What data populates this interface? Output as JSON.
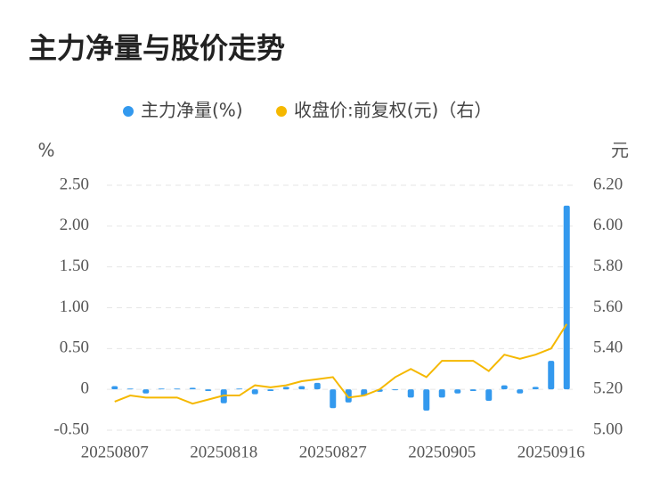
{
  "chart_data": {
    "type": "bar-line",
    "title": "主力净量与股价走势",
    "y_label": "%",
    "y2_label": "元",
    "categories": [
      "20250807",
      null,
      null,
      null,
      null,
      null,
      null,
      "20250818",
      null,
      null,
      null,
      null,
      null,
      null,
      "20250827",
      null,
      null,
      null,
      null,
      null,
      null,
      "20250905",
      null,
      null,
      null,
      null,
      null,
      null,
      "20250916",
      null
    ],
    "series": [
      {
        "name": "主力净量(%)",
        "type": "bar",
        "color": "#3399ee",
        "axis": "y",
        "values": [
          0.04,
          0.01,
          -0.05,
          0.01,
          0.01,
          0.02,
          -0.02,
          -0.17,
          0.01,
          -0.06,
          -0.02,
          0.03,
          0.04,
          0.08,
          -0.23,
          -0.16,
          -0.08,
          -0.03,
          -0.01,
          -0.1,
          -0.26,
          -0.1,
          -0.05,
          -0.02,
          -0.14,
          0.05,
          -0.05,
          0.03,
          0.35,
          2.25
        ]
      },
      {
        "name": "收盘价:前复权(元)（右）",
        "type": "line",
        "color": "#f5b800",
        "axis": "y2",
        "values": [
          5.14,
          5.17,
          5.16,
          5.16,
          5.16,
          5.13,
          5.15,
          5.17,
          5.17,
          5.22,
          5.21,
          5.22,
          5.24,
          5.25,
          5.26,
          5.16,
          5.17,
          5.2,
          5.26,
          5.3,
          5.26,
          5.34,
          5.34,
          5.34,
          5.29,
          5.37,
          5.35,
          5.37,
          5.4,
          5.52
        ]
      }
    ],
    "ylim": [
      -0.5,
      2.5
    ],
    "yticks": [
      {
        "value": -0.5,
        "label": "-0.50"
      },
      0,
      {
        "value": 0.5,
        "label": "0.50"
      },
      {
        "value": 1,
        "label": "1.00"
      },
      {
        "value": 1.5,
        "label": "1.50"
      },
      {
        "value": 2,
        "label": "2.00"
      },
      {
        "value": 2.5,
        "label": "2.50"
      }
    ],
    "y2lim": [
      5.0,
      6.2
    ],
    "y2ticks": [
      {
        "value": 5.0,
        "label": "5.00"
      },
      {
        "value": 5.2,
        "label": "5.20"
      },
      {
        "value": 5.4,
        "label": "5.40"
      },
      {
        "value": 5.6,
        "label": "5.60"
      },
      {
        "value": 5.8,
        "label": "5.80"
      },
      {
        "value": 6.0,
        "label": "6.00"
      },
      {
        "value": 6.2,
        "label": "6.20"
      }
    ],
    "grid": true,
    "legend": "top"
  }
}
